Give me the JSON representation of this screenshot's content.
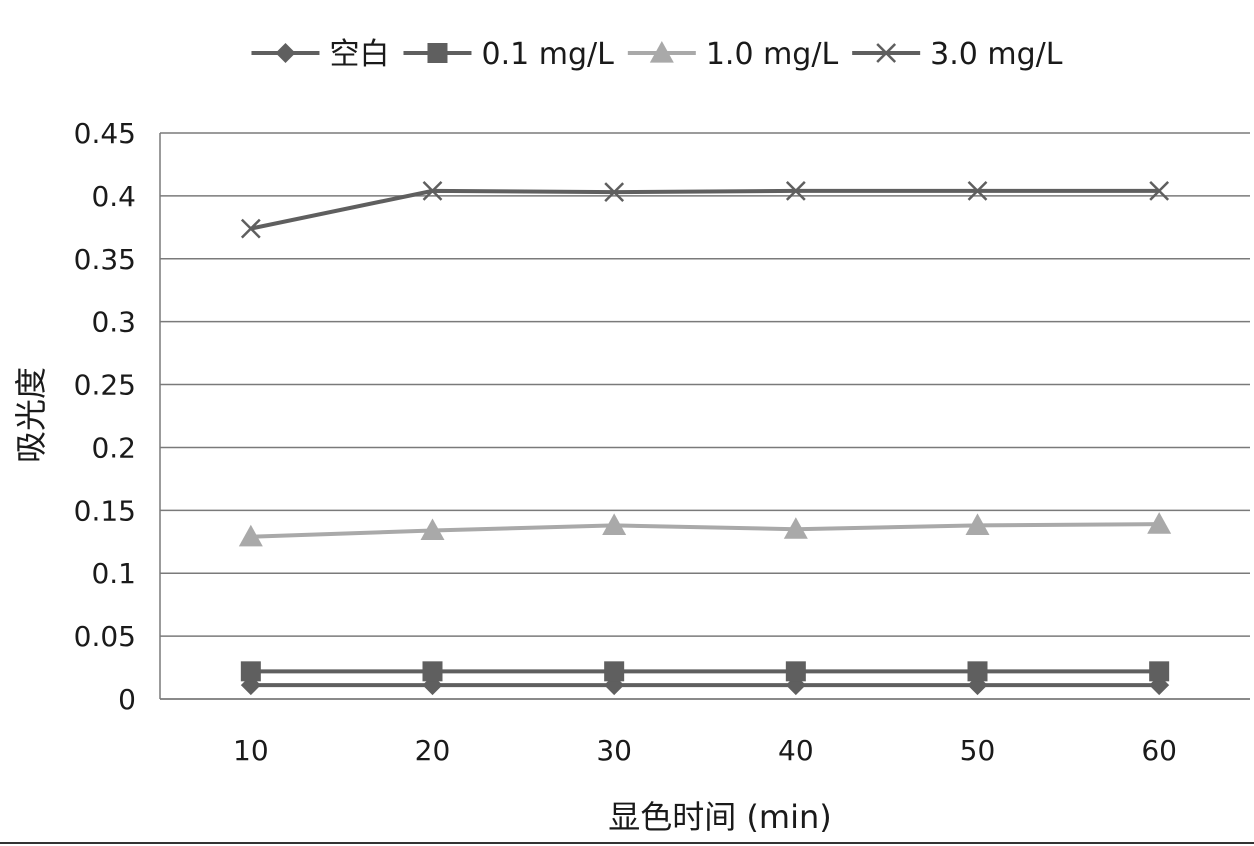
{
  "chart_data": {
    "type": "line",
    "title": "",
    "xlabel": "显色时间 (min)",
    "ylabel": "吸光度",
    "categories": [
      "10",
      "20",
      "30",
      "40",
      "50",
      "60"
    ],
    "ylim": [
      0,
      0.45
    ],
    "yticks": [
      "0",
      "0.05",
      "0.1",
      "0.15",
      "0.2",
      "0.25",
      "0.3",
      "0.35",
      "0.4",
      "0.45"
    ],
    "grid": true,
    "legend_position": "top",
    "series": [
      {
        "name": "空白",
        "marker": "diamond",
        "color": "#5f5f5f",
        "values": [
          0.011,
          0.011,
          0.011,
          0.011,
          0.011,
          0.011
        ]
      },
      {
        "name": "0.1 mg/L",
        "marker": "square",
        "color": "#5f5f5f",
        "values": [
          0.022,
          0.022,
          0.022,
          0.022,
          0.022,
          0.022
        ]
      },
      {
        "name": "1.0 mg/L",
        "marker": "triangle",
        "color": "#a9a9a9",
        "values": [
          0.129,
          0.134,
          0.138,
          0.135,
          0.138,
          0.139
        ]
      },
      {
        "name": "3.0 mg/L",
        "marker": "x",
        "color": "#5f5f5f",
        "values": [
          0.374,
          0.404,
          0.403,
          0.404,
          0.404,
          0.404
        ]
      }
    ]
  }
}
